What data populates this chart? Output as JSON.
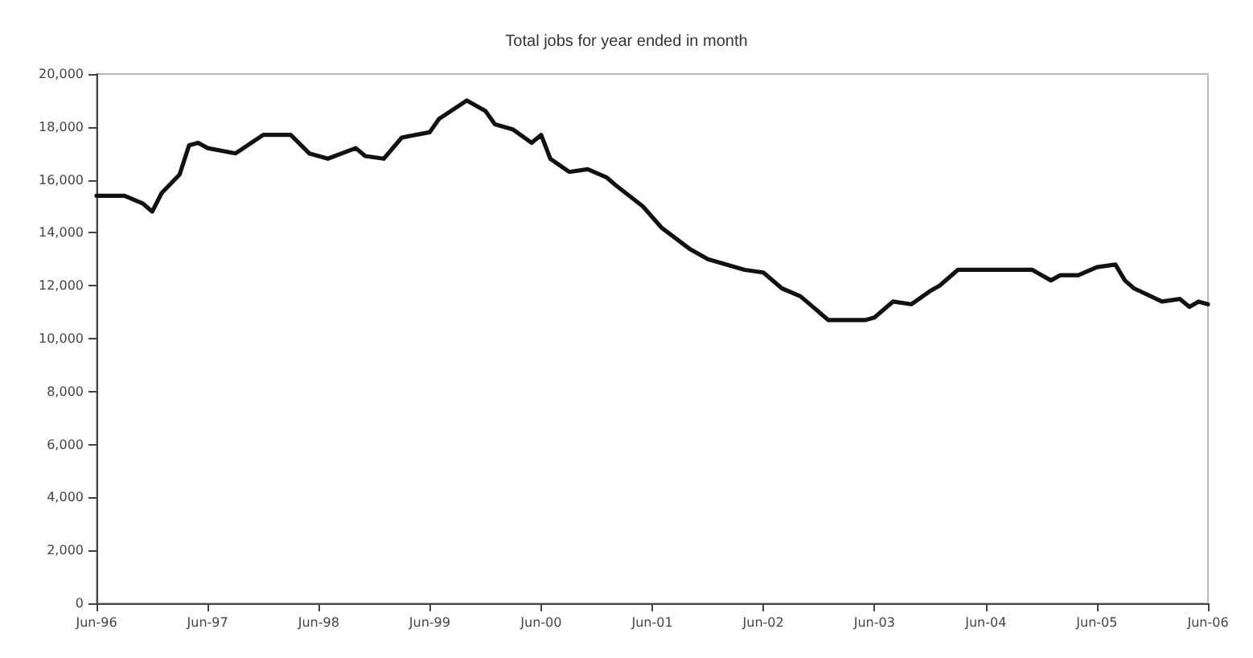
{
  "chart_data": {
    "type": "line",
    "title": "Total jobs for year ended in month",
    "x": [
      "1996-06",
      "1996-09",
      "1996-11",
      "1996-12",
      "1997-01",
      "1997-03",
      "1997-04",
      "1997-05",
      "1997-06",
      "1997-09",
      "1997-12",
      "1998-03",
      "1998-05",
      "1998-07",
      "1998-10",
      "1998-11",
      "1999-01",
      "1999-03",
      "1999-06",
      "1999-07",
      "1999-10",
      "1999-12",
      "2000-01",
      "2000-03",
      "2000-05",
      "2000-06",
      "2000-07",
      "2000-09",
      "2000-11",
      "2001-01",
      "2001-02",
      "2001-05",
      "2001-07",
      "2001-10",
      "2001-12",
      "2002-04",
      "2002-06",
      "2002-08",
      "2002-10",
      "2003-01",
      "2003-05",
      "2003-06",
      "2003-08",
      "2003-10",
      "2003-12",
      "2004-01",
      "2004-03",
      "2004-05",
      "2004-11",
      "2004-12",
      "2005-01",
      "2005-02",
      "2005-04",
      "2005-06",
      "2005-08",
      "2005-09",
      "2005-10",
      "2006-01",
      "2006-03",
      "2006-04",
      "2006-05",
      "2006-06"
    ],
    "series": [
      {
        "color": "#111111",
        "values": [
          15400,
          15400,
          15100,
          14800,
          15500,
          16200,
          17300,
          17400,
          17200,
          17000,
          17700,
          17700,
          17000,
          16800,
          17200,
          16900,
          16800,
          17600,
          17800,
          18300,
          19000,
          18600,
          18100,
          17900,
          17400,
          17700,
          16800,
          16300,
          16400,
          16100,
          15800,
          15000,
          14200,
          13400,
          13000,
          12600,
          12500,
          11900,
          11600,
          10700,
          10700,
          10800,
          11400,
          11300,
          11800,
          12000,
          12600,
          12600,
          12600,
          12400,
          12200,
          12400,
          12400,
          12700,
          12800,
          12200,
          11900,
          11400,
          11500,
          11200,
          11400,
          11300
        ]
      }
    ],
    "xlim": [
      "1996-06",
      "2006-06"
    ],
    "xticks": [
      {
        "value": "1996-06",
        "label": "Jun-96"
      },
      {
        "value": "1997-06",
        "label": "Jun-97"
      },
      {
        "value": "1998-06",
        "label": "Jun-98"
      },
      {
        "value": "1999-06",
        "label": "Jun-99"
      },
      {
        "value": "2000-06",
        "label": "Jun-00"
      },
      {
        "value": "2001-06",
        "label": "Jun-01"
      },
      {
        "value": "2002-06",
        "label": "Jun-02"
      },
      {
        "value": "2003-06",
        "label": "Jun-03"
      },
      {
        "value": "2004-06",
        "label": "Jun-04"
      },
      {
        "value": "2005-06",
        "label": "Jun-05"
      },
      {
        "value": "2006-06",
        "label": "Jun-06"
      }
    ],
    "ylim": [
      0,
      20000
    ],
    "yticks": [
      0,
      {
        "value": 2000,
        "label": "2,000"
      },
      {
        "value": 4000,
        "label": "4,000"
      },
      {
        "value": 6000,
        "label": "6,000"
      },
      {
        "value": 8000,
        "label": "8,000"
      },
      {
        "value": 10000,
        "label": "10,000"
      },
      {
        "value": 12000,
        "label": "12,000"
      },
      {
        "value": 14000,
        "label": "14,000"
      },
      {
        "value": 16000,
        "label": "16,000"
      },
      {
        "value": 18000,
        "label": "18,000"
      },
      {
        "value": 20000,
        "label": "20,000"
      }
    ],
    "grid": false,
    "marker": "none",
    "line_style": "solid"
  }
}
